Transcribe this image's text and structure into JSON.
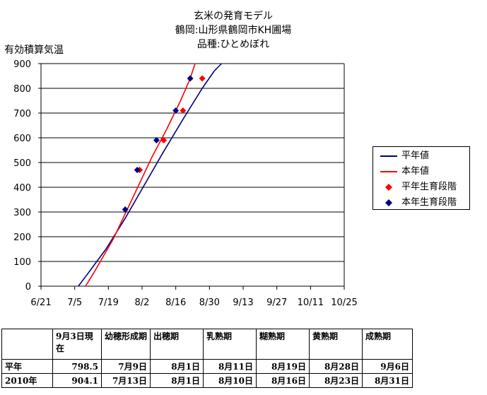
{
  "title": {
    "line1": "玄米の発育モデル",
    "line2": "鶴岡:山形県鶴岡市KH圃場",
    "line3": "品種:ひとめぼれ"
  },
  "chart_data": {
    "type": "line",
    "ylabel": "有効積算気温",
    "ylim": [
      0,
      900
    ],
    "yticks": [
      0,
      100,
      200,
      300,
      400,
      500,
      600,
      700,
      800,
      900
    ],
    "xticks": [
      "6/21",
      "7/5",
      "7/19",
      "8/2",
      "8/16",
      "8/30",
      "9/13",
      "9/27",
      "10/11",
      "10/25"
    ],
    "xlim_days": [
      0,
      126
    ],
    "grid": "horizontal",
    "legend_position": "right",
    "series": [
      {
        "name": "平年値",
        "kind": "line",
        "color": "#000080",
        "points": [
          [
            15.5,
            0
          ],
          [
            19,
            45
          ],
          [
            27,
            150
          ],
          [
            35,
            275
          ],
          [
            43,
            410
          ],
          [
            51,
            545
          ],
          [
            59,
            675
          ],
          [
            67,
            800
          ],
          [
            72,
            870
          ],
          [
            75,
            900
          ]
        ]
      },
      {
        "name": "本年値",
        "kind": "line",
        "color": "#ff0000",
        "points": [
          [
            18.5,
            0
          ],
          [
            22,
            55
          ],
          [
            30,
            190
          ],
          [
            38,
            355
          ],
          [
            46,
            520
          ],
          [
            52,
            630
          ],
          [
            58,
            750
          ],
          [
            62,
            840
          ],
          [
            64,
            900
          ]
        ]
      },
      {
        "name": "平年生育段階",
        "kind": "marker",
        "color": "#ff0000",
        "points": [
          [
            41,
            470
          ],
          [
            51,
            590
          ],
          [
            59,
            710
          ],
          [
            67,
            840
          ]
        ]
      },
      {
        "name": "本年生育段階",
        "kind": "marker",
        "color": "#000080",
        "points": [
          [
            35,
            310
          ],
          [
            40,
            470
          ],
          [
            48,
            590
          ],
          [
            56,
            710
          ],
          [
            62,
            840
          ]
        ]
      }
    ]
  },
  "stage_table": {
    "header": [
      "",
      "9月3日現在",
      "幼穂形成期",
      "出穂期",
      "乳熟期",
      "糊熟期",
      "黄熟期",
      "成熟期"
    ],
    "rows": [
      [
        "平年",
        "798.5",
        "7月9日",
        "8月1日",
        "8月11日",
        "8月19日",
        "8月28日",
        "9月6日"
      ],
      [
        "2010年",
        "904.1",
        "7月13日",
        "8月1日",
        "8月10日",
        "8月16日",
        "8月23日",
        "8月31日"
      ]
    ]
  }
}
